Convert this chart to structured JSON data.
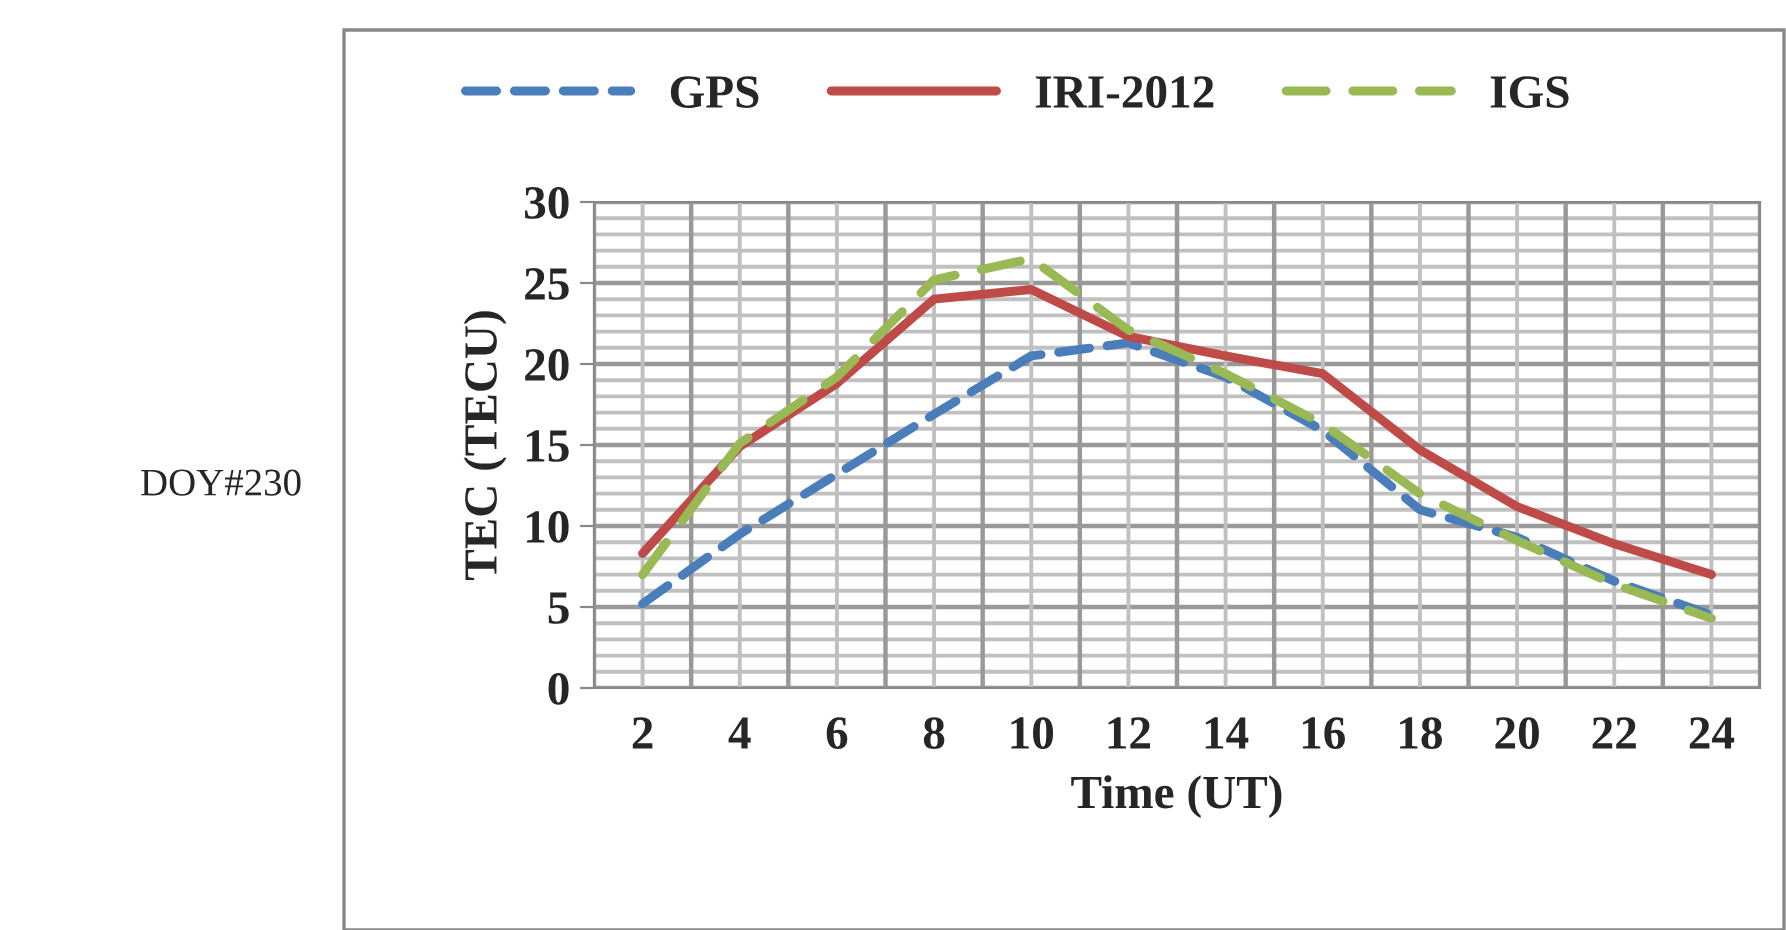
{
  "chart_data": {
    "type": "line",
    "xlabel": "Time (UT)",
    "ylabel": "TEC (TECU)",
    "annotations": [
      "DOY#230"
    ],
    "categories": [
      "2",
      "4",
      "6",
      "8",
      "10",
      "12",
      "14",
      "16",
      "18",
      "20",
      "22",
      "24"
    ],
    "series": [
      {
        "name": "GPS",
        "color": "#4a7ebb",
        "line_style": "dashed",
        "values": [
          5.2,
          9.5,
          13.2,
          16.9,
          20.5,
          21.3,
          19.2,
          15.9,
          11.0,
          9.3,
          6.6,
          4.5
        ]
      },
      {
        "name": "IRI-2012",
        "color": "#be4b48",
        "line_style": "solid",
        "values": [
          8.3,
          14.9,
          18.8,
          24.0,
          24.6,
          21.7,
          20.5,
          19.4,
          14.7,
          11.2,
          8.9,
          7.0
        ]
      },
      {
        "name": "IGS",
        "color": "#98b954",
        "line_style": "dashed",
        "values": [
          7.0,
          15.1,
          19.2,
          25.2,
          26.5,
          22.1,
          19.4,
          16.3,
          12.0,
          9.1,
          6.4,
          4.3
        ]
      }
    ],
    "ylim": [
      0,
      30
    ],
    "yticks": [
      0,
      5,
      10,
      15,
      20,
      25,
      30
    ],
    "grid": true,
    "legend": "top",
    "marker": "none"
  }
}
